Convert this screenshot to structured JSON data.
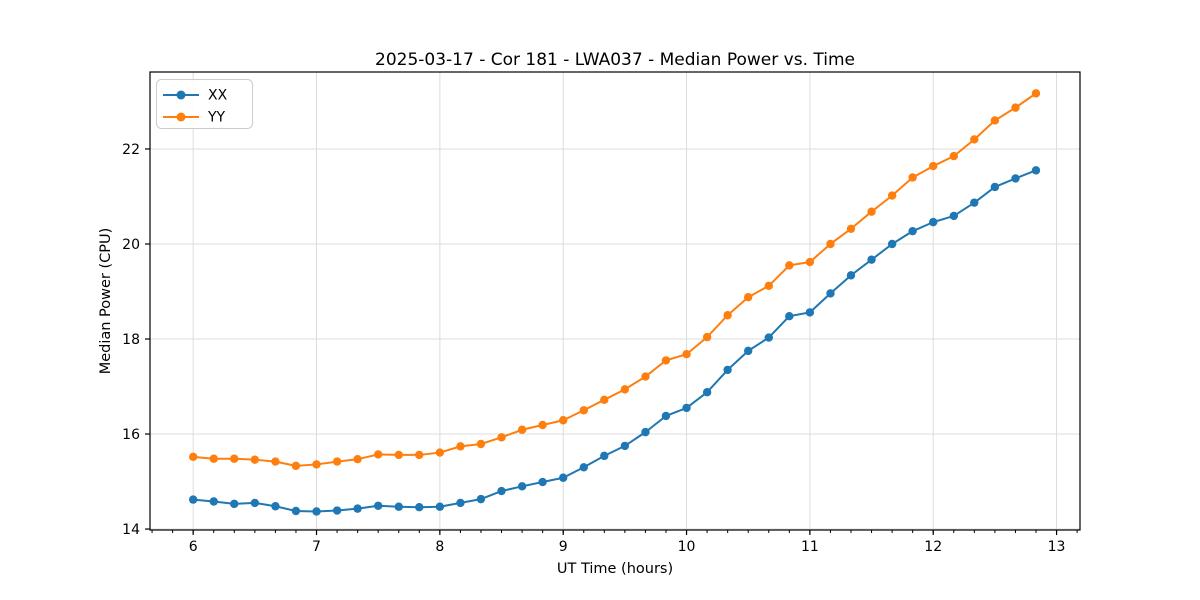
{
  "chart_data": {
    "type": "line",
    "title": "2025-03-17 - Cor 181 - LWA037 - Median Power vs. Time",
    "xlabel": "UT Time (hours)",
    "ylabel": "Median Power (CPU)",
    "xlim": [
      5.65,
      13.19
    ],
    "ylim": [
      13.98,
      23.62
    ],
    "xticks": [
      6,
      7,
      8,
      9,
      10,
      11,
      12,
      13
    ],
    "yticks": [
      14,
      16,
      18,
      20,
      22
    ],
    "x_minor_tick_step": 0.166667,
    "grid": true,
    "legend_position": "upper-left",
    "colors": {
      "grid": "#dcdcdc",
      "spine": "#000000",
      "legend_border": "#cccccc"
    },
    "x": [
      6.0,
      6.167,
      6.333,
      6.5,
      6.667,
      6.833,
      7.0,
      7.167,
      7.333,
      7.5,
      7.667,
      7.833,
      8.0,
      8.167,
      8.333,
      8.5,
      8.667,
      8.833,
      9.0,
      9.167,
      9.333,
      9.5,
      9.667,
      9.833,
      10.0,
      10.167,
      10.333,
      10.5,
      10.667,
      10.833,
      11.0,
      11.167,
      11.333,
      11.5,
      11.667,
      11.833,
      12.0,
      12.167,
      12.333,
      12.5,
      12.667,
      12.833
    ],
    "series": [
      {
        "name": "XX",
        "color": "#1f77b4",
        "values": [
          14.62,
          14.58,
          14.53,
          14.55,
          14.48,
          14.38,
          14.37,
          14.39,
          14.43,
          14.49,
          14.47,
          14.46,
          14.47,
          14.55,
          14.63,
          14.8,
          14.9,
          14.99,
          15.08,
          15.3,
          15.54,
          15.75,
          16.04,
          16.38,
          16.55,
          16.88,
          17.35,
          17.75,
          18.03,
          18.48,
          18.56,
          18.96,
          19.34,
          19.67,
          20.0,
          20.27,
          20.46,
          20.59,
          20.87,
          21.2,
          21.38,
          21.55
        ]
      },
      {
        "name": "YY",
        "color": "#ff7f0e",
        "values": [
          15.52,
          15.48,
          15.48,
          15.46,
          15.42,
          15.33,
          15.36,
          15.42,
          15.47,
          15.57,
          15.56,
          15.56,
          15.61,
          15.74,
          15.79,
          15.93,
          16.09,
          16.19,
          16.29,
          16.5,
          16.72,
          16.94,
          17.21,
          17.55,
          17.68,
          18.04,
          18.5,
          18.88,
          19.12,
          19.55,
          19.62,
          20.0,
          20.32,
          20.68,
          21.02,
          21.4,
          21.64,
          21.85,
          22.2,
          22.6,
          22.87,
          23.17
        ]
      }
    ]
  }
}
